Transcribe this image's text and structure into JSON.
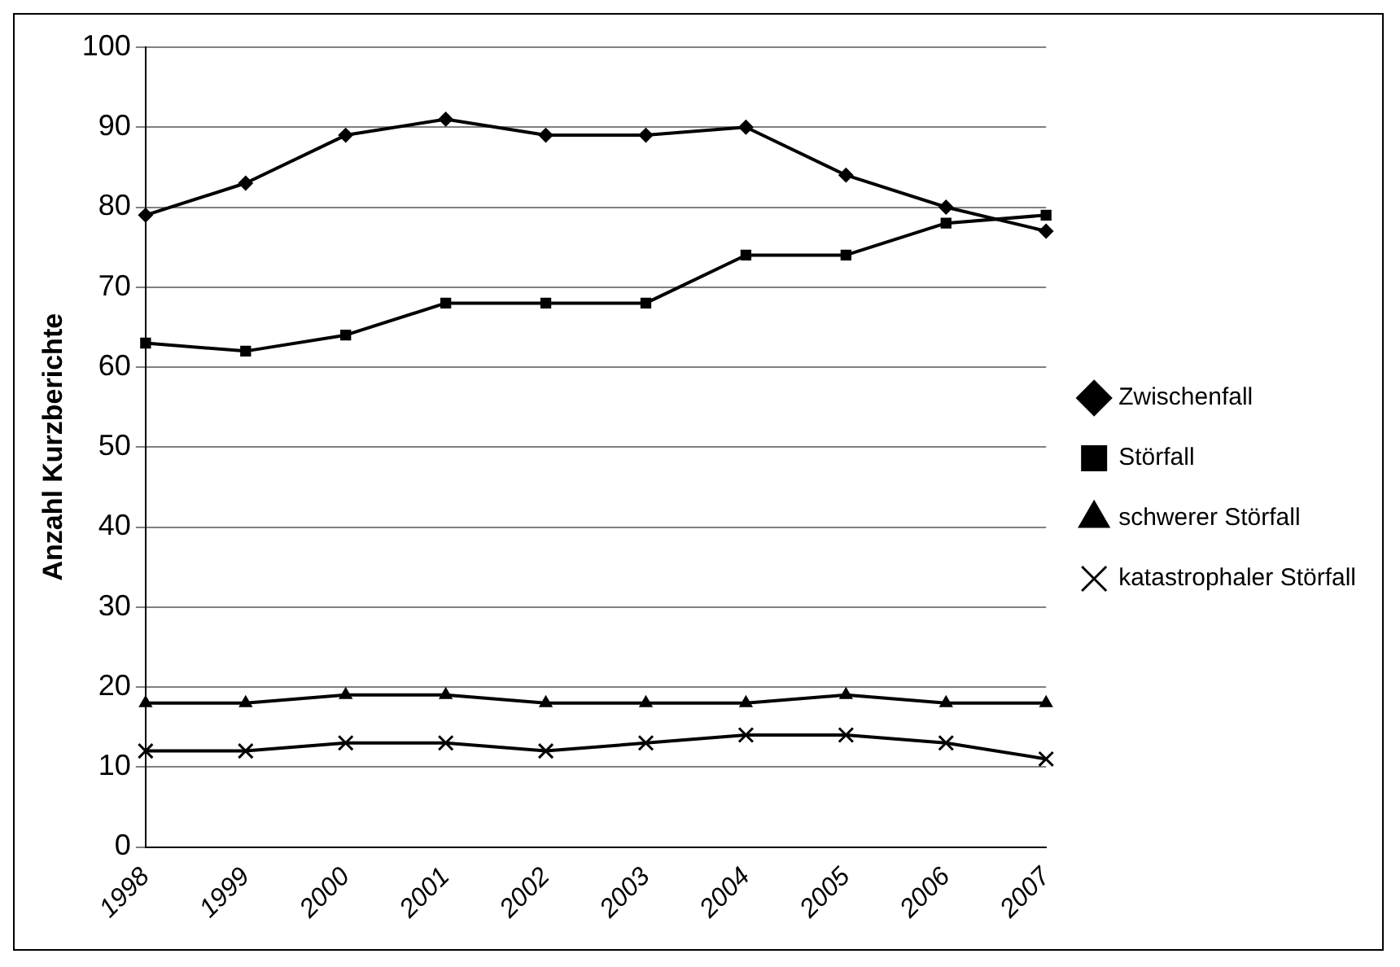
{
  "chart_data": {
    "type": "line",
    "ylabel": "Anzahl Kurzberichte",
    "categories": [
      "1998",
      "1999",
      "2000",
      "2001",
      "2002",
      "2003",
      "2004",
      "2005",
      "2006",
      "2007"
    ],
    "series": [
      {
        "name": "Zwischenfall",
        "color": "#000000",
        "marker": "diamond",
        "values": [
          79,
          83,
          89,
          91,
          89,
          89,
          90,
          84,
          80,
          77
        ]
      },
      {
        "name": "Störfall",
        "color": "#000000",
        "marker": "square",
        "values": [
          63,
          62,
          64,
          68,
          68,
          68,
          74,
          74,
          78,
          79
        ]
      },
      {
        "name": "schwerer Störfall",
        "color": "#000000",
        "marker": "triangle",
        "values": [
          18,
          18,
          19,
          19,
          18,
          18,
          18,
          19,
          18,
          18
        ]
      },
      {
        "name": "katastrophaler Störfall",
        "color": "#000000",
        "marker": "cross",
        "values": [
          12,
          12,
          13,
          13,
          12,
          13,
          14,
          14,
          13,
          11
        ]
      }
    ],
    "ylim": [
      0,
      100
    ],
    "yticks": [
      0,
      10,
      20,
      30,
      40,
      50,
      60,
      70,
      80,
      90,
      100
    ],
    "grid": "y",
    "legend": "right",
    "line_style": "solid"
  }
}
